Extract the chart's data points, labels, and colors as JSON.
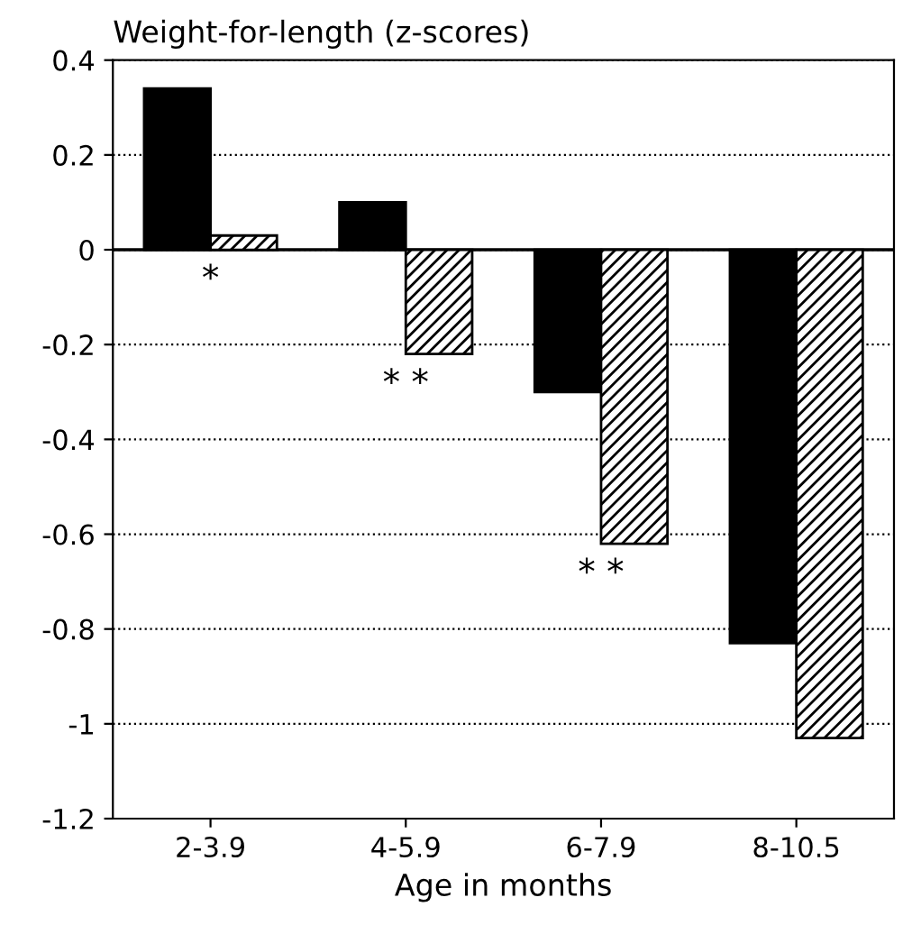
{
  "chart_data": {
    "type": "bar",
    "ylabel": "Weight-for-length (z-scores)",
    "xlabel": "Age in months",
    "categories": [
      "2-3.9",
      "4-5.9",
      "6-7.9",
      "8-10.5"
    ],
    "series": [
      {
        "color": "#000000",
        "values": [
          0.34,
          0.1,
          -0.3,
          -0.83
        ]
      },
      {
        "color": "#000000",
        "values": [
          0.03,
          -0.22,
          -0.62,
          -1.03
        ]
      }
    ],
    "ylim": [
      -1.2,
      0.4
    ],
    "yticks": [
      {
        "value": -1.2,
        "label": "-1.2"
      },
      {
        "value": -1,
        "label": "-1"
      },
      {
        "value": -0.8,
        "label": "-0.8"
      },
      {
        "value": -0.6,
        "label": "-0.6"
      },
      {
        "value": -0.4,
        "label": "-0.4"
      },
      {
        "value": -0.2,
        "label": "-0.2"
      },
      0,
      0.2,
      0.4
    ],
    "grid": "y",
    "legend": false,
    "ref_lines": [
      {
        "axis": "y",
        "value": 0
      }
    ],
    "annotations": [
      "*",
      "* *",
      "* *"
    ]
  }
}
